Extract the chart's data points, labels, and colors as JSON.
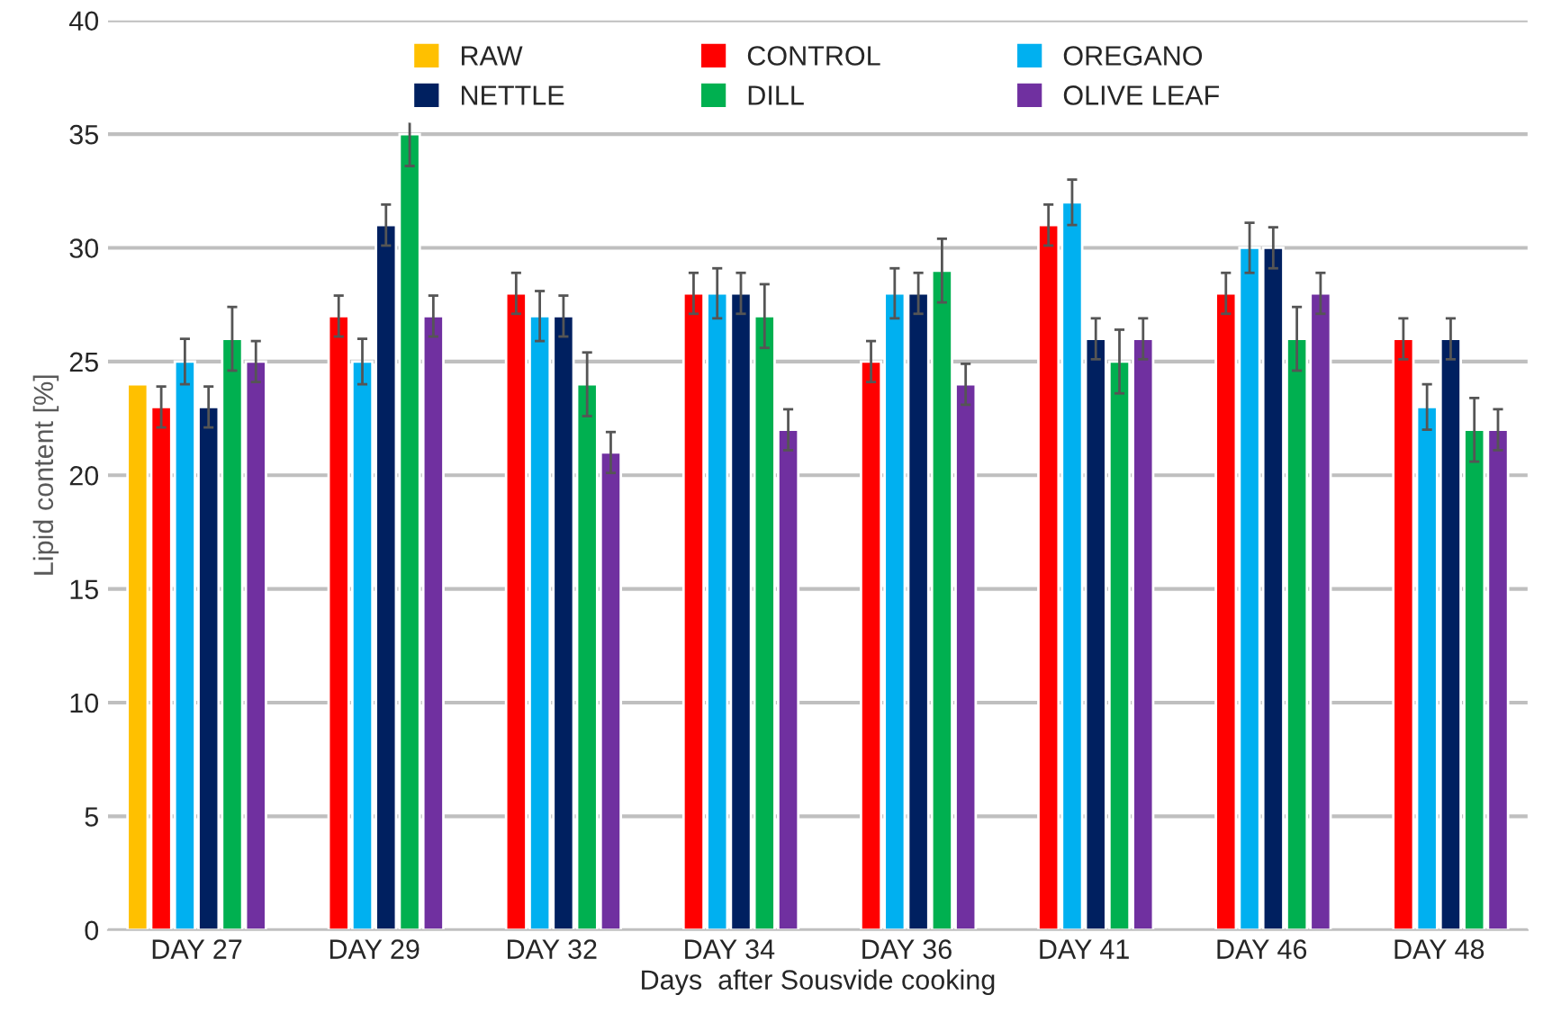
{
  "chart_data": {
    "type": "bar",
    "xlabel": "Days  after Sousvide cooking",
    "ylabel": "Lipid content [%]",
    "categories": [
      "DAY 27",
      "DAY 29",
      "DAY 32",
      "DAY 34",
      "DAY 36",
      "DAY 41",
      "DAY 46",
      "DAY 48"
    ],
    "series": [
      {
        "name": "RAW",
        "color": "#ffc000",
        "values": [
          24,
          null,
          null,
          null,
          null,
          null,
          null,
          null
        ]
      },
      {
        "name": "CONTROL",
        "color": "#ff0000",
        "values": [
          23,
          27,
          28,
          28,
          25,
          31,
          28,
          26
        ],
        "errors": [
          0.9,
          0.9,
          0.9,
          0.9,
          0.9,
          0.9,
          0.9,
          0.9
        ]
      },
      {
        "name": "OREGANO",
        "color": "#00b0f0",
        "values": [
          25,
          25,
          27,
          28,
          28,
          32,
          30,
          23
        ],
        "errors": [
          1.0,
          1.0,
          1.1,
          1.1,
          1.1,
          1.0,
          1.1,
          1.0
        ]
      },
      {
        "name": "NETTLE",
        "color": "#002060",
        "values": [
          23,
          31,
          27,
          28,
          28,
          26,
          30,
          26
        ],
        "errors": [
          0.9,
          0.9,
          0.9,
          0.9,
          0.9,
          0.9,
          0.9,
          0.9
        ]
      },
      {
        "name": "DILL",
        "color": "#00b050",
        "values": [
          26,
          35,
          24,
          27,
          29,
          25,
          26,
          22
        ],
        "errors": [
          1.4,
          1.4,
          1.4,
          1.4,
          1.4,
          1.4,
          1.4,
          1.4
        ]
      },
      {
        "name": "OLIVE LEAF",
        "color": "#7030a0",
        "values": [
          25,
          27,
          21,
          22,
          24,
          26,
          28,
          22
        ],
        "errors": [
          0.9,
          0.9,
          0.9,
          0.9,
          0.9,
          0.9,
          0.9,
          0.9
        ]
      }
    ],
    "ylim": [
      0,
      40
    ],
    "yticks": [
      0,
      5,
      10,
      15,
      20,
      25,
      30,
      35,
      40
    ],
    "grid": "y",
    "legend": "top"
  }
}
